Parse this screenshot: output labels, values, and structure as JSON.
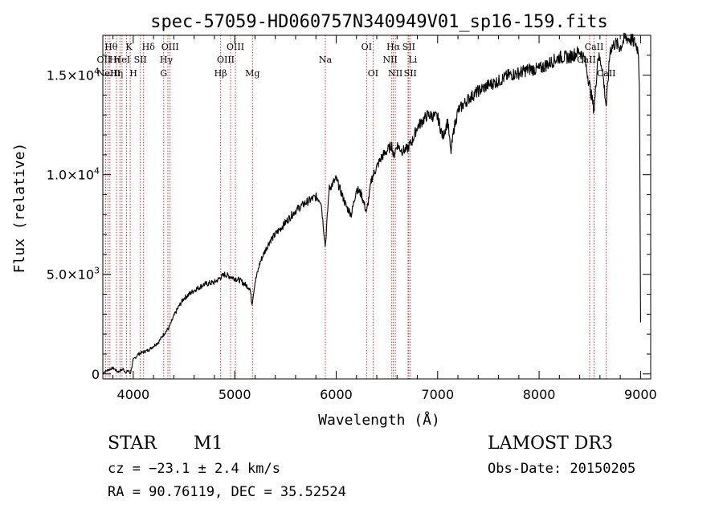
{
  "chart_data": {
    "type": "line",
    "title": "spec-57059-HD060757N340949V01_sp16-159.fits",
    "xlabel": "Wavelength (Å)",
    "ylabel": "Flux (relative)",
    "xlim": [
      3700,
      9100
    ],
    "ylim": [
      -250,
      17000
    ],
    "x_ticks": [
      {
        "value": 4000,
        "label": "4000"
      },
      {
        "value": 5000,
        "label": "5000"
      },
      {
        "value": 6000,
        "label": "6000"
      },
      {
        "value": 7000,
        "label": "7000"
      },
      {
        "value": 8000,
        "label": "8000"
      },
      {
        "value": 9000,
        "label": "9000"
      }
    ],
    "y_ticks": [
      {
        "value": 0,
        "base": "0",
        "exp": ""
      },
      {
        "value": 5000,
        "base": "5.0×10",
        "exp": "3"
      },
      {
        "value": 10000,
        "base": "1.0×10",
        "exp": "4"
      },
      {
        "value": 15000,
        "base": "1.5×10",
        "exp": "4"
      }
    ],
    "grid": false,
    "line_color": "#000000",
    "marker_color": "#cc3333",
    "series": [
      {
        "x": [
          3700,
          3750,
          3800,
          3850,
          3900,
          3930,
          3950,
          3970,
          4000,
          4050,
          4100,
          4150,
          4200,
          4250,
          4300,
          4350,
          4400,
          4450,
          4500,
          4600,
          4700,
          4800,
          4850,
          4900,
          4950,
          5000,
          5050,
          5100,
          5150,
          5170,
          5200,
          5250,
          5300,
          5350,
          5400,
          5500,
          5600,
          5700,
          5800,
          5850,
          5893,
          5930,
          6000,
          6050,
          6100,
          6150,
          6200,
          6250,
          6300,
          6350,
          6400,
          6450,
          6500,
          6550,
          6563,
          6600,
          6650,
          6700,
          6750,
          6800,
          6900,
          7000,
          7050,
          7100,
          7130,
          7160,
          7200,
          7300,
          7400,
          7500,
          7600,
          7700,
          7800,
          7900,
          8000,
          8100,
          8200,
          8300,
          8400,
          8450,
          8498,
          8542,
          8580,
          8620,
          8662,
          8700,
          8750,
          8800,
          8850,
          8900,
          8950,
          8980,
          8990,
          9000
        ],
        "y": [
          50,
          200,
          300,
          100,
          250,
          50,
          200,
          0,
          700,
          1000,
          1100,
          1200,
          1400,
          1600,
          2000,
          2300,
          2900,
          3400,
          3800,
          4200,
          4500,
          4600,
          4800,
          5000,
          4900,
          4800,
          4700,
          4500,
          4300,
          3500,
          4600,
          5600,
          6200,
          6700,
          7000,
          7600,
          8200,
          8600,
          8900,
          8700,
          6400,
          9300,
          9800,
          9100,
          8400,
          8000,
          9300,
          9000,
          8100,
          9800,
          10400,
          10900,
          11200,
          11500,
          10900,
          11500,
          11200,
          11300,
          11700,
          12400,
          13000,
          12900,
          11900,
          12700,
          11100,
          12300,
          13200,
          13800,
          14200,
          14500,
          14700,
          15000,
          15100,
          15300,
          15300,
          15600,
          15900,
          15900,
          16200,
          15800,
          14500,
          13200,
          16000,
          15500,
          13400,
          16300,
          16600,
          16400,
          16900,
          16800,
          16600,
          16200,
          14000,
          2500
        ]
      }
    ],
    "lines": [
      {
        "x": 3727,
        "label": "OII",
        "row": 2,
        "dx": -2
      },
      {
        "x": 3750,
        "label": "Hθ",
        "row": 1,
        "dx": 4
      },
      {
        "x": 3770,
        "label": "Hι",
        "row": 2,
        "dx": 6
      },
      {
        "x": 3835,
        "label": "Hη",
        "row": 3,
        "dx": 0
      },
      {
        "x": 3869,
        "label": "NeIII",
        "row": 3,
        "dx": -14
      },
      {
        "x": 3889,
        "label": "HeI",
        "row": 2,
        "dx": 0
      },
      {
        "x": 3934,
        "label": "K",
        "row": 1,
        "dx": 3
      },
      {
        "x": 3970,
        "label": "H",
        "row": 3,
        "dx": 4
      },
      {
        "x": 4070,
        "label": "SII",
        "row": 2,
        "dx": 0
      },
      {
        "x": 4102,
        "label": "Hδ",
        "row": 1,
        "dx": 6
      },
      {
        "x": 4300,
        "label": "G",
        "row": 3,
        "dx": 0
      },
      {
        "x": 4341,
        "label": "Hγ",
        "row": 2,
        "dx": -2
      },
      {
        "x": 4363,
        "label": "OIII",
        "row": 1,
        "dx": 0
      },
      {
        "x": 4861,
        "label": "Hβ",
        "row": 3,
        "dx": 0
      },
      {
        "x": 4959,
        "label": "OIII",
        "row": 2,
        "dx": -6
      },
      {
        "x": 5007,
        "label": "OIII",
        "row": 1,
        "dx": 0
      },
      {
        "x": 5175,
        "label": "Mg",
        "row": 3,
        "dx": 0
      },
      {
        "x": 5893,
        "label": "Na",
        "row": 2,
        "dx": 0
      },
      {
        "x": 6300,
        "label": "OI",
        "row": 1,
        "dx": 0
      },
      {
        "x": 6364,
        "label": "OI",
        "row": 3,
        "dx": 0
      },
      {
        "x": 6548,
        "label": "NII",
        "row": 2,
        "dx": -2
      },
      {
        "x": 6563,
        "label": "Hα",
        "row": 1,
        "dx": 0
      },
      {
        "x": 6583,
        "label": "NII",
        "row": 3,
        "dx": 0
      },
      {
        "x": 6708,
        "label": "Li",
        "row": 2,
        "dx": 6
      },
      {
        "x": 6716,
        "label": "SII",
        "row": 1,
        "dx": 0
      },
      {
        "x": 6731,
        "label": "SII",
        "row": 3,
        "dx": 0
      },
      {
        "x": 8498,
        "label": "CaII",
        "row": 2,
        "dx": -4
      },
      {
        "x": 8542,
        "label": "CaII",
        "row": 1,
        "dx": 0
      },
      {
        "x": 8662,
        "label": "CaII",
        "row": 3,
        "dx": 0
      }
    ]
  },
  "info": {
    "object_class": "STAR",
    "subclass": "M1",
    "cz": "cz = −23.1 ± 2.4 km/s",
    "coords": "RA =  90.76119, DEC =  35.52524",
    "survey": "LAMOST DR3",
    "obs_date": "Obs-Date: 20150205"
  }
}
